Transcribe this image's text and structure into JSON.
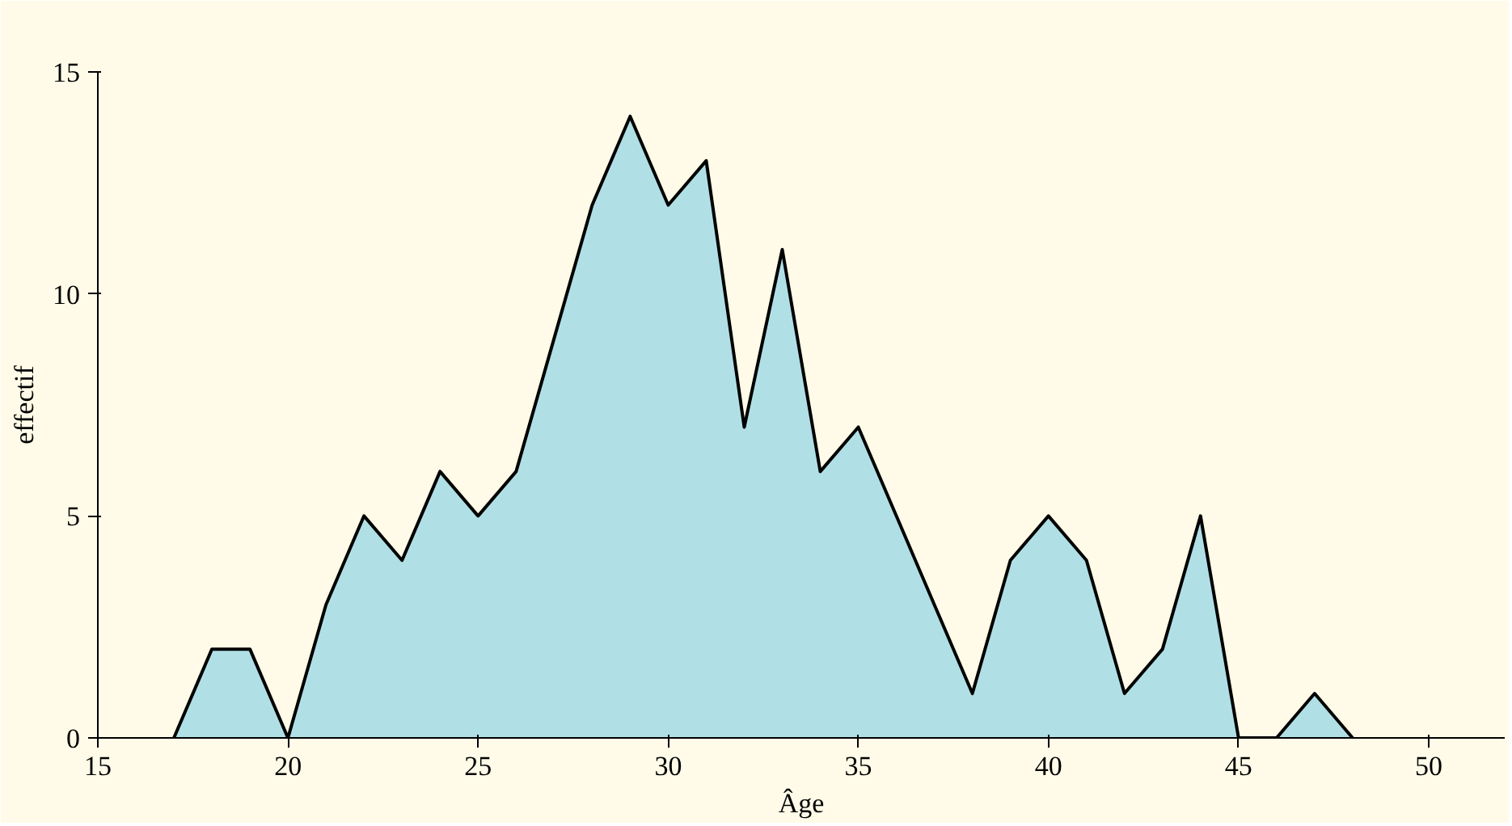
{
  "chart_data": {
    "type": "area",
    "xlabel": "Âge",
    "ylabel": "effectif",
    "x": [
      17,
      18,
      19,
      20,
      21,
      22,
      23,
      24,
      25,
      26,
      27,
      28,
      29,
      30,
      31,
      32,
      33,
      34,
      35,
      36,
      37,
      38,
      39,
      40,
      41,
      42,
      43,
      44,
      45,
      46,
      47,
      48
    ],
    "series": [
      {
        "color": "#b0e0e6",
        "values": [
          0,
          2,
          2,
          0,
          3,
          5,
          4,
          6,
          5,
          6,
          9,
          12,
          14,
          12,
          13,
          7,
          11,
          6,
          7,
          5,
          3,
          1,
          4,
          5,
          4,
          1,
          2,
          5,
          0,
          0,
          1,
          0
        ]
      }
    ],
    "xlim": [
      15,
      52
    ],
    "ylim": [
      0,
      15
    ],
    "xticks": [
      15,
      20,
      25,
      30,
      35,
      40,
      45,
      50
    ],
    "yticks": [
      0,
      5,
      10,
      15
    ],
    "grid": false
  }
}
